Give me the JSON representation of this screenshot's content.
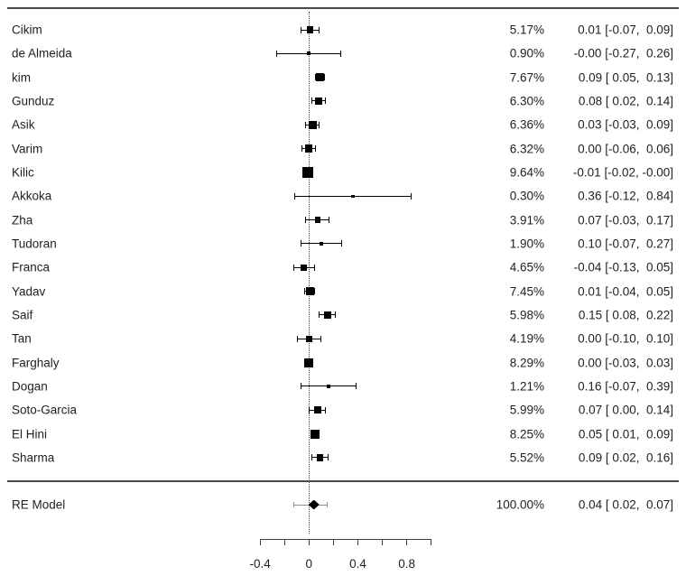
{
  "colors": {
    "marker": "#000000",
    "text": "#1f1f1f",
    "rule": "#4a4a4a",
    "prediction_interval": "#8f8f8f",
    "background": "#ffffff"
  },
  "chart_data": {
    "type": "scatter",
    "variant": "forest-plot-meta-analysis",
    "title": "",
    "xlabel": "",
    "ylabel": "",
    "x_axis": {
      "range": [
        -0.4,
        1.0
      ],
      "tick_step": 0.2,
      "tick_values": [
        -0.4,
        -0.2,
        0,
        0.2,
        0.4,
        0.6,
        0.8,
        1.0
      ],
      "tick_labels": [
        {
          "value": -0.4,
          "label": "-0.4"
        },
        {
          "value": 0,
          "label": "0"
        },
        {
          "value": 0.4,
          "label": "0.4"
        },
        {
          "value": 0.8,
          "label": "0.8"
        }
      ],
      "zero_reference_line": 0,
      "grid": false
    },
    "columns": {
      "weight_header": "",
      "estimate_header": ""
    },
    "studies": [
      {
        "label": "Cikim",
        "weight": "5.17%",
        "weight_pct": 5.17,
        "estimate": 0.01,
        "ci_low": -0.07,
        "ci_high": 0.09,
        "annotation": "0.01 [-0.07,  0.09]"
      },
      {
        "label": "de Almeida",
        "weight": "0.90%",
        "weight_pct": 0.9,
        "estimate": 0.0,
        "ci_low": -0.27,
        "ci_high": 0.26,
        "annotation": "-0.00 [-0.27,  0.26]"
      },
      {
        "label": "kim",
        "weight": "7.67%",
        "weight_pct": 7.67,
        "estimate": 0.09,
        "ci_low": 0.05,
        "ci_high": 0.13,
        "annotation": "0.09 [ 0.05,  0.13]"
      },
      {
        "label": "Gunduz",
        "weight": "6.30%",
        "weight_pct": 6.3,
        "estimate": 0.08,
        "ci_low": 0.02,
        "ci_high": 0.14,
        "annotation": "0.08 [ 0.02,  0.14]"
      },
      {
        "label": "Asik",
        "weight": "6.36%",
        "weight_pct": 6.36,
        "estimate": 0.03,
        "ci_low": -0.03,
        "ci_high": 0.09,
        "annotation": "0.03 [-0.03,  0.09]"
      },
      {
        "label": "Varim",
        "weight": "6.32%",
        "weight_pct": 6.32,
        "estimate": 0.0,
        "ci_low": -0.06,
        "ci_high": 0.06,
        "annotation": "0.00 [-0.06,  0.06]"
      },
      {
        "label": "Kilic",
        "weight": "9.64%",
        "weight_pct": 9.64,
        "estimate": -0.01,
        "ci_low": -0.02,
        "ci_high": 0.0,
        "annotation": "-0.01 [-0.02, -0.00]"
      },
      {
        "label": "Akkoka",
        "weight": "0.30%",
        "weight_pct": 0.3,
        "estimate": 0.36,
        "ci_low": -0.12,
        "ci_high": 0.84,
        "annotation": "0.36 [-0.12,  0.84]"
      },
      {
        "label": "Zha",
        "weight": "3.91%",
        "weight_pct": 3.91,
        "estimate": 0.07,
        "ci_low": -0.03,
        "ci_high": 0.17,
        "annotation": "0.07 [-0.03,  0.17]"
      },
      {
        "label": "Tudoran",
        "weight": "1.90%",
        "weight_pct": 1.9,
        "estimate": 0.1,
        "ci_low": -0.07,
        "ci_high": 0.27,
        "annotation": "0.10 [-0.07,  0.27]"
      },
      {
        "label": "Franca",
        "weight": "4.65%",
        "weight_pct": 4.65,
        "estimate": -0.04,
        "ci_low": -0.13,
        "ci_high": 0.05,
        "annotation": "-0.04 [-0.13,  0.05]"
      },
      {
        "label": "Yadav",
        "weight": "7.45%",
        "weight_pct": 7.45,
        "estimate": 0.01,
        "ci_low": -0.04,
        "ci_high": 0.05,
        "annotation": "0.01 [-0.04,  0.05]"
      },
      {
        "label": "Saif",
        "weight": "5.98%",
        "weight_pct": 5.98,
        "estimate": 0.15,
        "ci_low": 0.08,
        "ci_high": 0.22,
        "annotation": "0.15 [ 0.08,  0.22]"
      },
      {
        "label": "Tan",
        "weight": "4.19%",
        "weight_pct": 4.19,
        "estimate": 0.0,
        "ci_low": -0.1,
        "ci_high": 0.1,
        "annotation": "0.00 [-0.10,  0.10]"
      },
      {
        "label": "Farghaly",
        "weight": "8.29%",
        "weight_pct": 8.29,
        "estimate": 0.0,
        "ci_low": -0.03,
        "ci_high": 0.03,
        "annotation": "0.00 [-0.03,  0.03]"
      },
      {
        "label": "Dogan",
        "weight": "1.21%",
        "weight_pct": 1.21,
        "estimate": 0.16,
        "ci_low": -0.07,
        "ci_high": 0.39,
        "annotation": "0.16 [-0.07,  0.39]"
      },
      {
        "label": "Soto-Garcia",
        "weight": "5.99%",
        "weight_pct": 5.99,
        "estimate": 0.07,
        "ci_low": 0.0,
        "ci_high": 0.14,
        "annotation": "0.07 [ 0.00,  0.14]"
      },
      {
        "label": "El Hini",
        "weight": "8.25%",
        "weight_pct": 8.25,
        "estimate": 0.05,
        "ci_low": 0.01,
        "ci_high": 0.09,
        "annotation": "0.05 [ 0.01,  0.09]"
      },
      {
        "label": "Sharma",
        "weight": "5.52%",
        "weight_pct": 5.52,
        "estimate": 0.09,
        "ci_low": 0.02,
        "ci_high": 0.16,
        "annotation": "0.09 [ 0.02,  0.16]"
      }
    ],
    "summary": {
      "label": "RE Model",
      "weight": "100.00%",
      "weight_pct": 100.0,
      "estimate": 0.04,
      "ci_low": 0.02,
      "ci_high": 0.07,
      "annotation": "0.04 [ 0.02,  0.07]",
      "prediction_interval": [
        -0.13,
        0.15
      ]
    }
  }
}
